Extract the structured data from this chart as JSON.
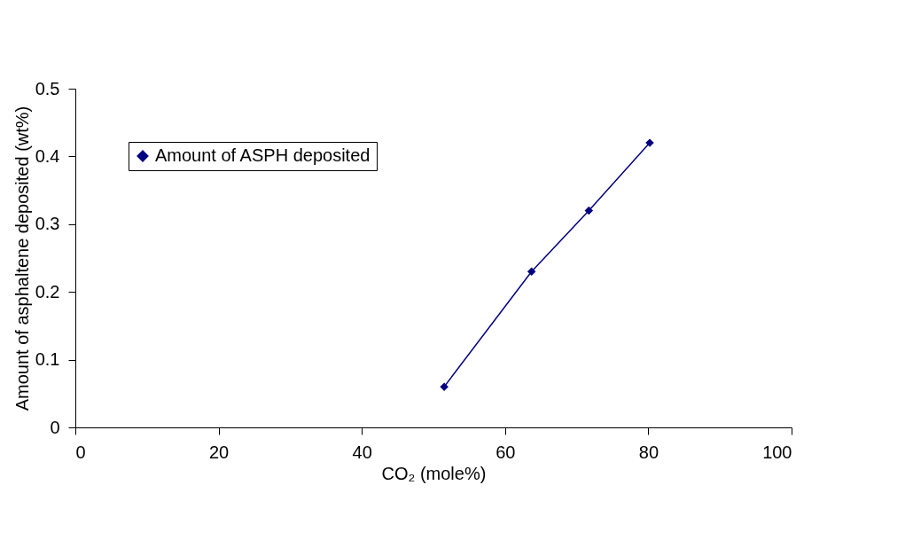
{
  "chart_data": {
    "type": "line",
    "xlabel": "CO₂ (mole%)",
    "ylabel": "Amount of asphaltene deposited (wt%)",
    "x": [
      51.5,
      63.7,
      71.7,
      80.2
    ],
    "series": [
      {
        "name": "Amount of ASPH deposited",
        "color": "#000080",
        "values": [
          0.06,
          0.23,
          0.32,
          0.42
        ]
      }
    ],
    "xlim": [
      0,
      100
    ],
    "xticks": [
      0,
      20,
      40,
      60,
      80,
      100
    ],
    "ylim": [
      0,
      0.5
    ],
    "yticks": [
      0,
      0.1,
      0.2,
      0.3,
      0.4,
      0.5
    ],
    "marker": "diamond",
    "line_style": "solid",
    "legend": "top left",
    "grid": false
  }
}
